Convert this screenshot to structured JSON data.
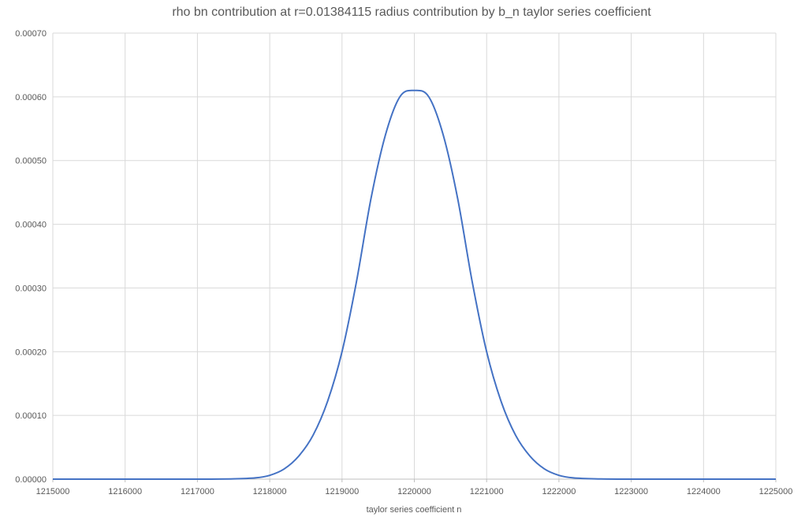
{
  "chart_data": {
    "type": "line",
    "title": "rho bn contribution at r=0.01384115 radius contribution by b_n  taylor series coefficient",
    "xlabel": "taylor series coefficient n",
    "ylabel": "",
    "xlim": [
      1215000,
      1225000
    ],
    "ylim": [
      0,
      0.0007
    ],
    "x_ticks": [
      1215000,
      1216000,
      1217000,
      1218000,
      1219000,
      1220000,
      1221000,
      1222000,
      1223000,
      1224000,
      1225000
    ],
    "y_ticks": [
      0,
      0.0001,
      0.0002,
      0.0003,
      0.0004,
      0.0005,
      0.0006,
      0.0007
    ],
    "y_tick_decimals": 5,
    "grid": true,
    "legend": "none",
    "series": [
      {
        "color": "#4472c4",
        "x": [
          1215000,
          1216000,
          1217000,
          1217500,
          1217800,
          1218000,
          1218200,
          1218400,
          1218600,
          1218800,
          1219000,
          1219200,
          1219400,
          1219600,
          1219800,
          1220000,
          1220200,
          1220400,
          1220600,
          1220800,
          1221000,
          1221200,
          1221400,
          1221600,
          1221800,
          1222000,
          1222200,
          1222500,
          1223000,
          1224000,
          1225000
        ],
        "y": [
          0,
          0,
          0,
          5e-07,
          2e-06,
          6e-06,
          1.6e-05,
          3.6e-05,
          6.9e-05,
          0.000122,
          0.0002,
          0.00031,
          0.00044,
          0.00054,
          0.0006,
          0.00061,
          0.0006,
          0.00054,
          0.00044,
          0.00031,
          0.0002,
          0.000122,
          6.9e-05,
          3.6e-05,
          1.6e-05,
          6e-06,
          2e-06,
          5e-07,
          0,
          0,
          0
        ]
      }
    ]
  }
}
